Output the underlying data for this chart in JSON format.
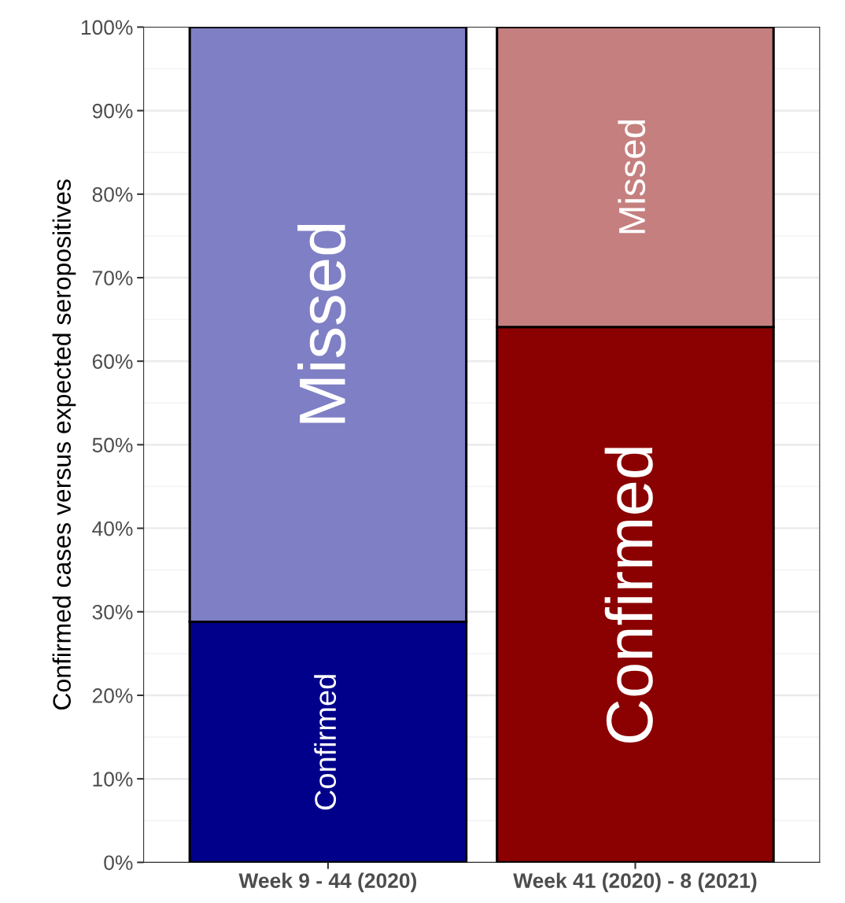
{
  "chart_data": {
    "type": "bar",
    "stacked": true,
    "ylabel": "Confirmed cases versus expected seropositives",
    "categories": [
      "Week 9 - 44 (2020)",
      "Week 41 (2020) - 8 (2021)"
    ],
    "series": [
      {
        "name": "Confirmed",
        "colors": [
          "#00008b",
          "#8b0000"
        ],
        "values": [
          28.8,
          64.1
        ]
      },
      {
        "name": "Missed",
        "colors": [
          "#7f7fc5",
          "#c57f7f"
        ],
        "values": [
          71.2,
          35.9
        ]
      }
    ],
    "ylim": [
      0,
      100
    ],
    "yticks": [
      {
        "value": 0,
        "label": "0%"
      },
      {
        "value": 10,
        "label": "10%"
      },
      {
        "value": 20,
        "label": "20%"
      },
      {
        "value": 30,
        "label": "30%"
      },
      {
        "value": 40,
        "label": "40%"
      },
      {
        "value": 50,
        "label": "50%"
      },
      {
        "value": 60,
        "label": "60%"
      },
      {
        "value": 70,
        "label": "70%"
      },
      {
        "value": 80,
        "label": "80%"
      },
      {
        "value": 90,
        "label": "90%"
      },
      {
        "value": 100,
        "label": "100%"
      }
    ],
    "grid": true
  }
}
